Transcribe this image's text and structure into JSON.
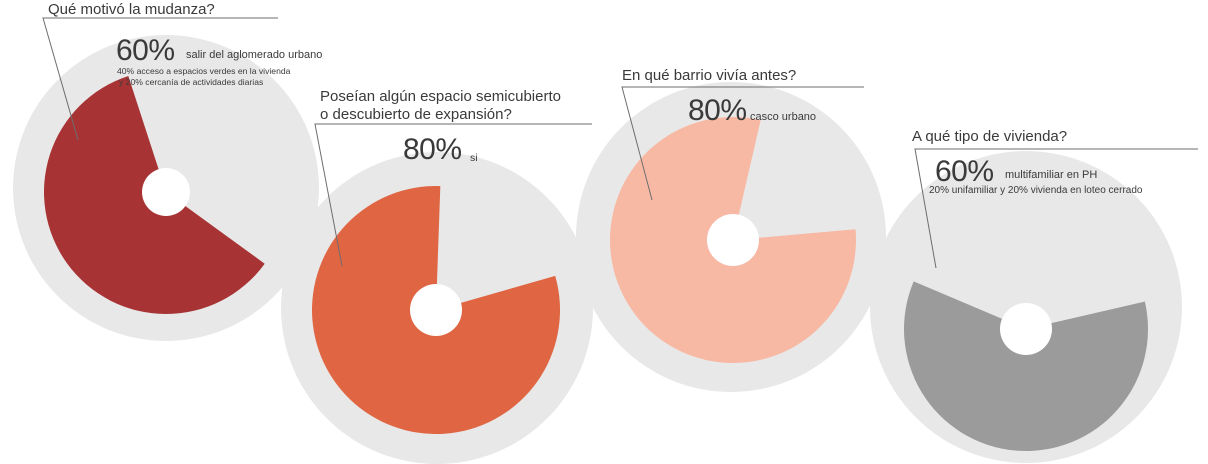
{
  "chart_data": [
    {
      "type": "pie",
      "question": "Qué motivó la mudanza?",
      "main_percent": "60%",
      "main_label": "salir del aglomerado urbano",
      "detail_lines": [
        "40% acceso a espacios verdes en la vivienda",
        "y 20% cercanía de actividades diarias"
      ],
      "value": 60,
      "color": "#a83334"
    },
    {
      "type": "pie",
      "question_lines": [
        "Poseían algún espacio semicubierto",
        "o descubierto de expansión?"
      ],
      "main_percent": "80%",
      "main_label": "si",
      "value": 80,
      "color": "#e06542"
    },
    {
      "type": "pie",
      "question": "En qué barrio vivía antes?",
      "main_percent": "80%",
      "main_label": "casco urbano",
      "value": 80,
      "color": "#f8b9a4"
    },
    {
      "type": "pie",
      "question": "A qué tipo de vivienda?",
      "main_percent": "60%",
      "main_label": "multifamiliar en PH",
      "detail_lines": [
        "20% unifamiliar y 20% vivienda en loteo cerrado"
      ],
      "value": 60,
      "color": "#9b9b9b"
    }
  ],
  "colors": {
    "background_disc": "#e8e8e8",
    "hole": "#ffffff"
  }
}
